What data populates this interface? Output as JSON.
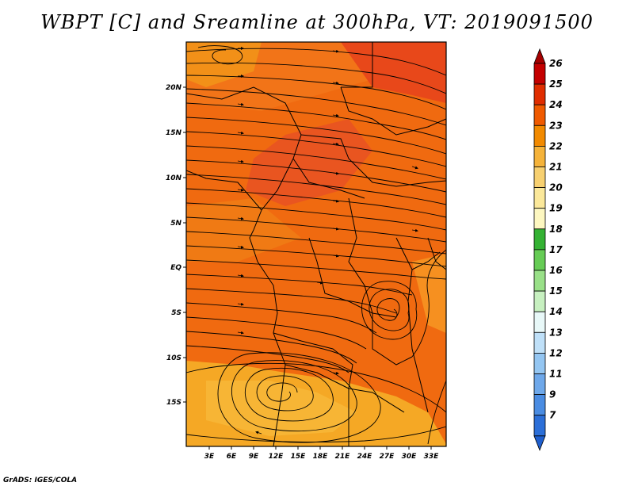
{
  "title": "WBPT [C] and Sreamline at 300hPa, VT: 2019091500",
  "footer": "GrADS: IGES/COLA",
  "map": {
    "lon_labels": [
      "3E",
      "6E",
      "9E",
      "12E",
      "15E",
      "18E",
      "21E",
      "24E",
      "27E",
      "30E",
      "33E"
    ],
    "lat_labels": [
      "20N",
      "15N",
      "10N",
      "5N",
      "EQ",
      "5S",
      "10S",
      "15S"
    ]
  },
  "colorbar": {
    "labels": [
      "26",
      "25",
      "24",
      "23",
      "22",
      "21",
      "20",
      "19",
      "18",
      "17",
      "16",
      "15",
      "14",
      "13",
      "12",
      "11",
      "9",
      "7"
    ],
    "colors": [
      "#a50000",
      "#c40000",
      "#e02d00",
      "#f05a00",
      "#f28a00",
      "#f5b33a",
      "#f7d070",
      "#fbe89a",
      "#fdf7c0",
      "#34b233",
      "#66cc55",
      "#99e088",
      "#c7f0c0",
      "#e8f8f8",
      "#bfe0f8",
      "#94c6f2",
      "#6ea8ea",
      "#4a8ce2",
      "#2c6fd8",
      "#1f5fce"
    ]
  },
  "chart_data": {
    "type": "heatmap",
    "title": "WBPT [C] and Sreamline at 300hPa, VT: 2019091500",
    "variable": "WBPT [C]",
    "level": "300hPa",
    "valid_time": "2019091500",
    "x_ticks": [
      "3E",
      "6E",
      "9E",
      "12E",
      "15E",
      "18E",
      "21E",
      "24E",
      "27E",
      "30E",
      "33E"
    ],
    "y_ticks": [
      "20N",
      "15N",
      "10N",
      "5N",
      "EQ",
      "5S",
      "10S",
      "15S"
    ],
    "colorbar_levels": [
      7,
      9,
      11,
      12,
      13,
      14,
      15,
      16,
      17,
      18,
      19,
      20,
      21,
      22,
      23,
      24,
      25,
      26
    ],
    "dominant_range": [
      20,
      24
    ]
  }
}
